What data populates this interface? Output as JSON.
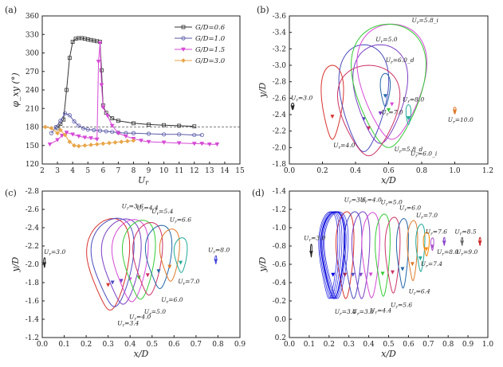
{
  "chart_data": [
    {
      "panel": "(a)",
      "type": "line",
      "xlabel": "U_r",
      "ylabel": "φ_xy (°)",
      "xlim": [
        2,
        15
      ],
      "ylim": [
        120,
        360
      ],
      "xticks": [
        "2",
        "3",
        "4",
        "5",
        "6",
        "7",
        "8",
        "9",
        "10",
        "11",
        "12",
        "13",
        "14",
        "15"
      ],
      "yticks": [
        "120",
        "150",
        "180",
        "210",
        "240",
        "270",
        "300",
        "330",
        "360"
      ],
      "reference_line": 180,
      "legend_position": "top-right",
      "series": [
        {
          "name": "G/D=0.6",
          "color": "#333333",
          "marker": "square",
          "x": [
            3.0,
            3.2,
            3.4,
            3.6,
            3.8,
            4.0,
            4.2,
            4.4,
            4.6,
            4.8,
            5.0,
            5.2,
            5.4,
            5.6,
            5.8,
            5.9,
            6.0,
            6.2,
            6.6,
            7.0,
            8.0,
            9.0,
            10.0,
            11.0,
            12.0
          ],
          "y": [
            178,
            185,
            192,
            240,
            292,
            318,
            323,
            324,
            324,
            323,
            322,
            321,
            320,
            319,
            318,
            272,
            215,
            203,
            194,
            190,
            186,
            184,
            183,
            182,
            181
          ]
        },
        {
          "name": "G/D=1.0",
          "color": "#5a5aa8",
          "marker": "circle",
          "x": [
            2.6,
            2.9,
            3.2,
            3.5,
            3.8,
            4.1,
            4.4,
            4.7,
            5.0,
            5.4,
            5.8,
            6.2,
            6.6,
            7.0,
            7.5,
            8.0,
            9.0,
            10.0,
            11.0,
            12.0,
            12.5
          ],
          "y": [
            170,
            180,
            190,
            202,
            199,
            189,
            182,
            178,
            176,
            175,
            174,
            173,
            172,
            171,
            170,
            170,
            169,
            168,
            168,
            167,
            167
          ]
        },
        {
          "name": "G/D=1.5",
          "color": "#d64ad6",
          "marker": "triangle-down",
          "x": [
            2.5,
            3.0,
            3.3,
            3.6,
            4.0,
            4.4,
            4.8,
            5.2,
            5.6,
            5.7,
            5.8,
            5.9,
            6.0,
            6.3,
            6.6,
            7.0,
            7.5,
            8.0,
            8.5,
            9.0,
            10.0,
            11.0,
            12.0,
            12.5,
            13.0,
            13.5
          ],
          "y": [
            152,
            159,
            166,
            171,
            168,
            165,
            163,
            162,
            160,
            286,
            316,
            248,
            212,
            198,
            182,
            170,
            165,
            161,
            158,
            156,
            155,
            154,
            153,
            153,
            152,
            152
          ]
        },
        {
          "name": "G/D=3.0",
          "color": "#e8a64a",
          "marker": "diamond",
          "x": [
            2.2,
            2.6,
            3.0,
            3.2,
            3.5,
            3.8,
            4.1,
            4.4,
            4.8,
            5.2,
            5.6,
            6.0,
            6.4,
            6.8,
            7.2,
            7.6,
            8.0
          ],
          "y": [
            180,
            178,
            170,
            175,
            167,
            156,
            150,
            149,
            150,
            151,
            152,
            153,
            154,
            155,
            156,
            157,
            158
          ]
        }
      ]
    },
    {
      "panel": "(b)",
      "type": "line",
      "xlabel": "x/D",
      "ylabel": "y/D",
      "xlim": [
        0,
        1.2
      ],
      "ylim": [
        -3.6,
        -1.8
      ],
      "xticks": [
        "0.0",
        "0.2",
        "0.4",
        "0.6",
        "0.8",
        "1.0",
        "1.2"
      ],
      "yticks": [
        "-1.8",
        "-2.0",
        "-2.2",
        "-2.4",
        "-2.6",
        "-2.8",
        "-3.0",
        "-3.2",
        "-3.4",
        "-3.6"
      ],
      "annotations": [
        "U_r=3.0",
        "U_r=4.0",
        "U_r=5.0",
        "U_r=5.8_d",
        "U_r=5.8_i",
        "U_r=6.0_i",
        "U_r=6.0_d",
        "U_r=7.0",
        "U_r=8.0",
        "U_r=10.0"
      ],
      "orbits": [
        {
          "label": "U_r=3.0",
          "color": "#222222",
          "cx": 0.02,
          "cy": -2.9,
          "rx": 0.01,
          "ry": 0.04
        },
        {
          "label": "U_r=4.0",
          "color": "#d9332d",
          "cx": 0.26,
          "cy": -2.85,
          "rx": 0.09,
          "ry": 0.45
        },
        {
          "label": "U_r=5.0",
          "color": "#4b4bbf",
          "cx": 0.45,
          "cy": -2.8,
          "rx": 0.2,
          "ry": 0.65
        },
        {
          "label": "U_r=5.8_d",
          "color": "#7a3fc4",
          "cx": 0.55,
          "cy": -2.75,
          "rx": 0.22,
          "ry": 0.6
        },
        {
          "label": "U_r=5.8_i",
          "color": "#d64ad6",
          "cx": 0.62,
          "cy": -2.6,
          "rx": 0.28,
          "ry": 0.7
        },
        {
          "label": "U_r=6.0_i",
          "color": "#33cc33",
          "cx": 0.6,
          "cy": -2.65,
          "rx": 0.3,
          "ry": 0.75
        },
        {
          "label": "U_r=6.0_d",
          "color": "#cc3366",
          "cx": 0.48,
          "cy": -2.95,
          "rx": 0.25,
          "ry": 0.55
        },
        {
          "label": "U_r=7.0",
          "color": "#2266aa",
          "cx": 0.58,
          "cy": -2.7,
          "rx": 0.04,
          "ry": 0.2
        },
        {
          "label": "U_r=8.0",
          "color": "#22aa99",
          "cx": 0.72,
          "cy": -3.0,
          "rx": 0.02,
          "ry": 0.12
        },
        {
          "label": "U_r=10.0",
          "color": "#e07a2a",
          "cx": 1.0,
          "cy": -2.95,
          "rx": 0.01,
          "ry": 0.04
        }
      ]
    },
    {
      "panel": "(c)",
      "type": "line",
      "xlabel": "x/D",
      "ylabel": "y/D",
      "xlim": [
        0,
        0.9
      ],
      "ylim": [
        -2.8,
        -1.2
      ],
      "xticks": [
        "0.0",
        "0.1",
        "0.2",
        "0.3",
        "0.4",
        "0.5",
        "0.6",
        "0.7",
        "0.8",
        "0.9"
      ],
      "yticks": [
        "-1.2",
        "-1.4",
        "-1.6",
        "-1.8",
        "-2.0",
        "-2.2",
        "-2.4",
        "-2.6",
        "-2.8"
      ],
      "annotations": [
        "U_r=3.0",
        "U_r=3.4",
        "U_r=3.6",
        "U_r=4.0",
        "U_r=4.4",
        "U_r=5.0",
        "U_r=5.4",
        "U_r=6.0",
        "U_r=6.6",
        "U_r=7.0",
        "U_r=8.0"
      ],
      "orbits": [
        {
          "label": "U_r=3.0",
          "color": "#222222",
          "cx": 0.01,
          "cy": -1.98,
          "rx": 0.005,
          "ry": 0.06
        },
        {
          "label": "U_r=3.4",
          "color": "#d9332d",
          "cx": 0.3,
          "cy": -2.0,
          "rx": 0.13,
          "ry": 0.58
        },
        {
          "label": "U_r=3.6",
          "color": "#4b4bbf",
          "cx": 0.32,
          "cy": -1.98,
          "rx": 0.13,
          "ry": 0.56
        },
        {
          "label": "U_r=4.0",
          "color": "#7a3fc4",
          "cx": 0.36,
          "cy": -1.97,
          "rx": 0.12,
          "ry": 0.54
        },
        {
          "label": "U_r=4.4",
          "color": "#d64ad6",
          "cx": 0.4,
          "cy": -1.96,
          "rx": 0.11,
          "ry": 0.52
        },
        {
          "label": "U_r=5.0",
          "color": "#33cc33",
          "cx": 0.44,
          "cy": -1.95,
          "rx": 0.1,
          "ry": 0.5
        },
        {
          "label": "U_r=5.4",
          "color": "#cc3366",
          "cx": 0.48,
          "cy": -1.94,
          "rx": 0.09,
          "ry": 0.46
        },
        {
          "label": "U_r=6.0",
          "color": "#2266aa",
          "cx": 0.53,
          "cy": -1.92,
          "rx": 0.08,
          "ry": 0.4
        },
        {
          "label": "U_r=6.6",
          "color": "#e07a2a",
          "cx": 0.58,
          "cy": -1.9,
          "rx": 0.06,
          "ry": 0.33
        },
        {
          "label": "U_r=7.0",
          "color": "#22aa99",
          "cx": 0.63,
          "cy": -1.9,
          "rx": 0.04,
          "ry": 0.22
        },
        {
          "label": "U_r=8.0",
          "color": "#4444dd",
          "cx": 0.79,
          "cy": -1.95,
          "rx": 0.005,
          "ry": 0.05
        }
      ]
    },
    {
      "panel": "(d)",
      "type": "line",
      "xlabel": "x/D",
      "ylabel": "y/D",
      "xlim": [
        0,
        1.0
      ],
      "ylim": [
        -1.4,
        0.2
      ],
      "xticks": [
        "0.0",
        "0.1",
        "0.2",
        "0.3",
        "0.4",
        "0.5",
        "0.6",
        "0.7",
        "0.8",
        "0.9",
        "1.0"
      ],
      "yticks": [
        "0.2",
        "0.0",
        "-0.2",
        "-0.4",
        "-0.6",
        "-0.8",
        "-1.0",
        "-1.2",
        "-1.4"
      ],
      "annotations": [
        "U_r=3.0",
        "U_r=3.4",
        "U_r=3.6",
        "U_r=3.8",
        "U_r=4.0",
        "U_r=4.4",
        "U_r=5.0",
        "U_r=5.6",
        "U_r=6.0",
        "U_r=6.4",
        "U_r=7.0",
        "U_r=7.4",
        "U_r=7.6",
        "U_r=8.0",
        "U_r=8.5",
        "U_r=9.0"
      ],
      "orbits": [
        {
          "label": "U_r=3.0",
          "color": "#222222",
          "cx": 0.11,
          "cy": -0.45,
          "rx": 0.005,
          "ry": 0.08
        },
        {
          "label": "U_r=3.4",
          "color": "#0000dd",
          "cx": 0.22,
          "cy": -0.5,
          "rx": 0.08,
          "ry": 0.55
        },
        {
          "label": "U_r=3.6",
          "color": "#d9332d",
          "cx": 0.28,
          "cy": -0.5,
          "rx": 0.06,
          "ry": 0.55
        },
        {
          "label": "U_r=3.8",
          "color": "#4b4bbf",
          "cx": 0.32,
          "cy": -0.5,
          "rx": 0.06,
          "ry": 0.55
        },
        {
          "label": "U_r=4.0",
          "color": "#7a3fc4",
          "cx": 0.36,
          "cy": -0.5,
          "rx": 0.06,
          "ry": 0.55
        },
        {
          "label": "U_r=4.4",
          "color": "#d64ad6",
          "cx": 0.41,
          "cy": -0.5,
          "rx": 0.06,
          "ry": 0.54
        },
        {
          "label": "U_r=5.0",
          "color": "#33cc33",
          "cx": 0.47,
          "cy": -0.5,
          "rx": 0.05,
          "ry": 0.52
        },
        {
          "label": "U_r=5.6",
          "color": "#cc3366",
          "cx": 0.52,
          "cy": -0.5,
          "rx": 0.05,
          "ry": 0.48
        },
        {
          "label": "U_r=6.0",
          "color": "#2266aa",
          "cx": 0.57,
          "cy": -0.48,
          "rx": 0.04,
          "ry": 0.44
        },
        {
          "label": "U_r=6.4",
          "color": "#e07a2a",
          "cx": 0.62,
          "cy": -0.45,
          "rx": 0.035,
          "ry": 0.38
        },
        {
          "label": "U_r=7.0",
          "color": "#22aa99",
          "cx": 0.66,
          "cy": -0.42,
          "rx": 0.03,
          "ry": 0.3
        },
        {
          "label": "U_r=7.4",
          "color": "#ff8800",
          "cx": 0.69,
          "cy": -0.38,
          "rx": 0.02,
          "ry": 0.15
        },
        {
          "label": "U_r=7.6",
          "color": "#aa55cc",
          "cx": 0.72,
          "cy": -0.38,
          "rx": 0.01,
          "ry": 0.08
        },
        {
          "label": "U_r=8.0",
          "color": "#8844cc",
          "cx": 0.78,
          "cy": -0.35,
          "rx": 0.005,
          "ry": 0.05
        },
        {
          "label": "U_r=8.5",
          "color": "#666666",
          "cx": 0.87,
          "cy": -0.35,
          "rx": 0.005,
          "ry": 0.05
        },
        {
          "label": "U_r=9.0",
          "color": "#cc2222",
          "cx": 0.96,
          "cy": -0.35,
          "rx": 0.005,
          "ry": 0.05
        }
      ]
    }
  ]
}
